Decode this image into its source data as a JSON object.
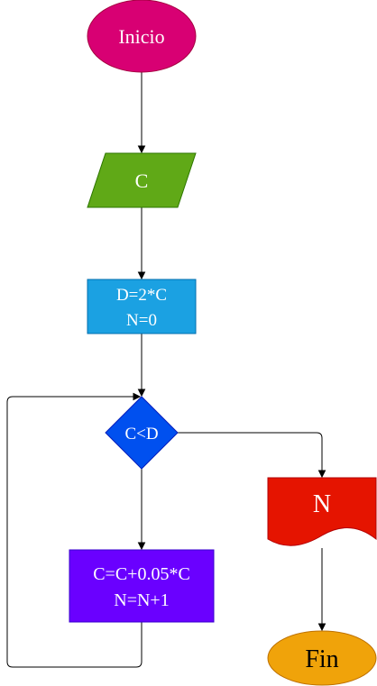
{
  "diagram": {
    "type": "flowchart",
    "nodes": {
      "start": {
        "label": "Inicio",
        "shape": "ellipse",
        "color": "#d80073"
      },
      "input": {
        "label": "C",
        "shape": "parallelogram",
        "color": "#60a917"
      },
      "init": {
        "line1": "D=2*C",
        "line2": "N=0",
        "shape": "rectangle",
        "color": "#1ba1e2"
      },
      "decision": {
        "label": "C<D",
        "shape": "diamond",
        "color": "#0050ef"
      },
      "update": {
        "line1": "C=C+0.05*C",
        "line2": "N=N+1",
        "shape": "rectangle",
        "color": "#6a00ff"
      },
      "output": {
        "label": "N",
        "shape": "document",
        "color": "#e51400"
      },
      "end": {
        "label": "Fin",
        "shape": "ellipse",
        "color": "#f0a30a"
      }
    },
    "edges": [
      {
        "from": "start",
        "to": "input"
      },
      {
        "from": "input",
        "to": "init"
      },
      {
        "from": "init",
        "to": "decision"
      },
      {
        "from": "decision",
        "to": "update"
      },
      {
        "from": "update",
        "to": "decision"
      },
      {
        "from": "decision",
        "to": "output"
      },
      {
        "from": "output",
        "to": "end"
      }
    ]
  }
}
